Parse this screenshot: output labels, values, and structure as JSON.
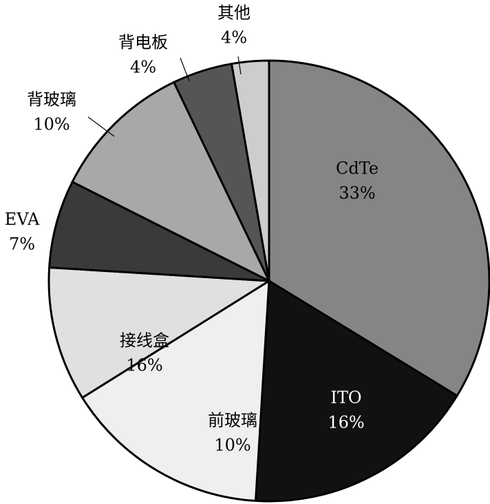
{
  "chart_data": {
    "type": "pie",
    "title": "",
    "start": "12 o'clock",
    "direction": "clockwise",
    "slices": [
      {
        "name": "CdTe",
        "value": 33,
        "label": "33%",
        "color": "#858585",
        "text_color": "#000000"
      },
      {
        "name": "ITO",
        "value": 16,
        "label": "16%",
        "color": "#111111",
        "text_color": "#ffffff"
      },
      {
        "name": "前玻璃",
        "value": 10,
        "label": "10%",
        "color": "#efefef",
        "text_color": "#000000"
      },
      {
        "name": "接线盒",
        "value": 16,
        "label": "16%",
        "color": "#e0e0e0",
        "text_color": "#000000"
      },
      {
        "name": "EVA",
        "value": 7,
        "label": "7%",
        "color": "#3a3a3a",
        "text_color": "#000000"
      },
      {
        "name": "背玻璃",
        "value": 10,
        "label": "10%",
        "color": "#a8a8a8",
        "text_color": "#000000"
      },
      {
        "name": "背电板",
        "value": 4,
        "label": "4%",
        "color": "#555555",
        "text_color": "#000000"
      },
      {
        "name": "其他",
        "value": 4,
        "label": "4%",
        "color": "#cdcdcd",
        "text_color": "#000000"
      }
    ]
  }
}
